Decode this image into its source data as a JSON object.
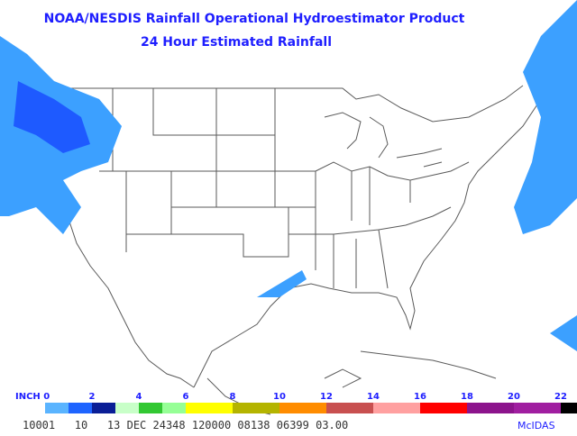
{
  "header": {
    "title": "NOAA/NESDIS Rainfall Operational Hydroestimator Product",
    "subtitle": "24 Hour Estimated Rainfall"
  },
  "legend": {
    "unit_label": "INCH 0",
    "ticks": [
      "2",
      "4",
      "6",
      "8",
      "10",
      "12",
      "14",
      "16",
      "18",
      "20",
      "22"
    ],
    "colors": [
      "#5ab4ff",
      "#1e64ff",
      "#0a1e96",
      "#c8ffc8",
      "#32c832",
      "#96ff96",
      "#ffff00",
      "#ffff00",
      "#b4b400",
      "#b4b400",
      "#ff8c00",
      "#ff8c00",
      "#c85050",
      "#c85050",
      "#ffa0a0",
      "#ffa0a0",
      "#ff0000",
      "#ff0000",
      "#8c148c",
      "#8c148c",
      "#a01ea0",
      "#a01ea0",
      "#000000",
      "#000000",
      "#000000",
      "#000000",
      "#e6e6e6",
      "#e6e6e6"
    ]
  },
  "footer": {
    "info": "10001   10   13 DEC 24348 120000 08138 06399 03.00",
    "brand": "McIDAS"
  }
}
